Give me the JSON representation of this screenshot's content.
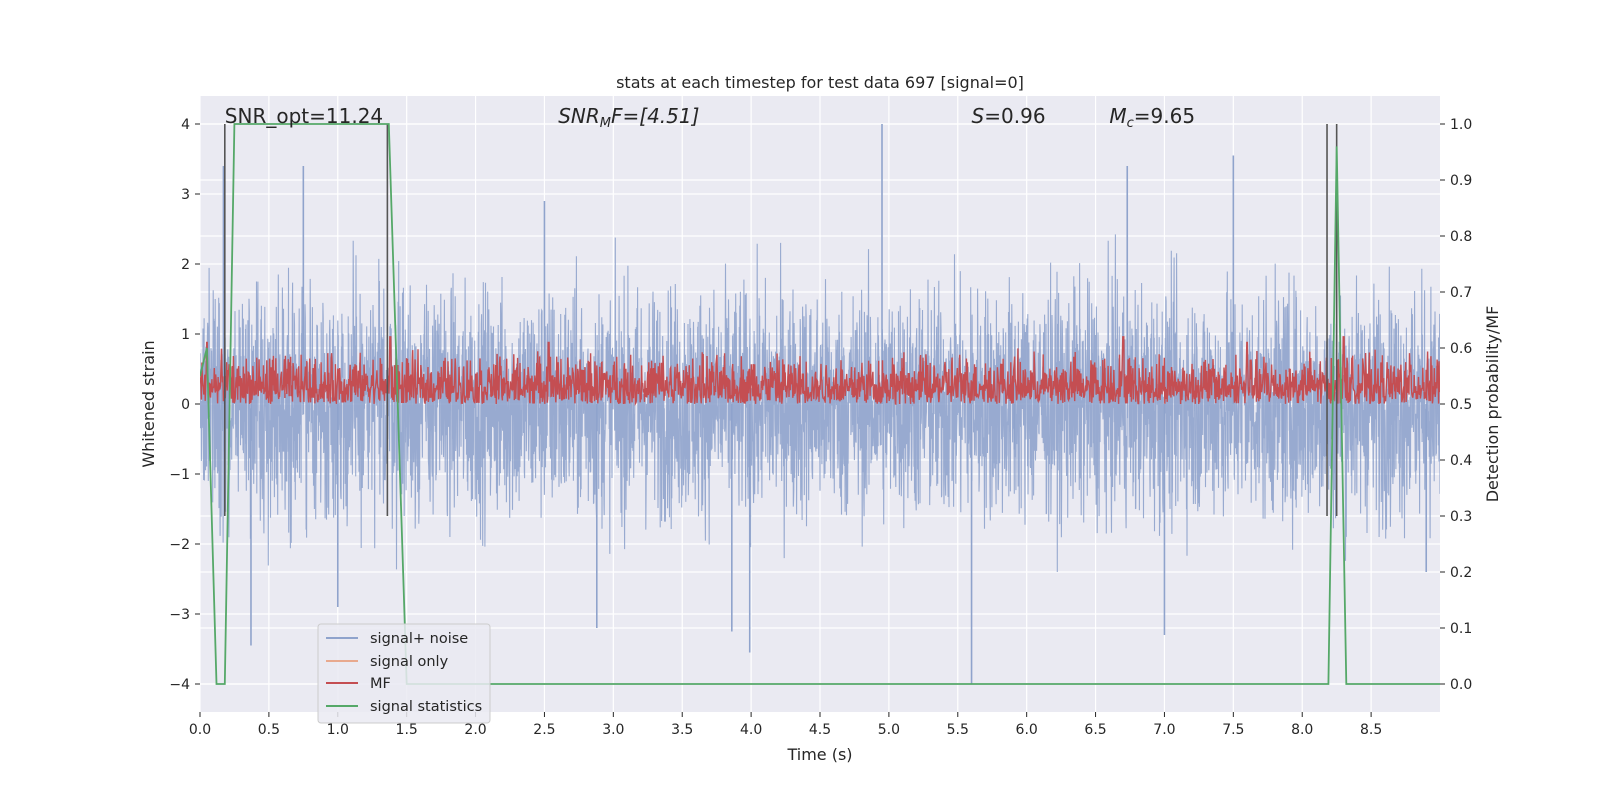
{
  "chart_data": {
    "type": "line",
    "title": "stats at each timestep for test data 697 [signal=0]",
    "xlabel": "Time (s)",
    "ylabel": "Whitened strain",
    "ylabel_right": "Detection probability/MF",
    "xlim": [
      0,
      9.0
    ],
    "ylim": [
      -4.4,
      4.4
    ],
    "ylim_right": [
      -0.05,
      1.05
    ],
    "x_ticks": [
      0.0,
      0.5,
      1.0,
      1.5,
      2.0,
      2.5,
      3.0,
      3.5,
      4.0,
      4.5,
      5.0,
      5.5,
      6.0,
      6.5,
      7.0,
      7.5,
      8.0,
      8.5
    ],
    "x_tick_labels": [
      "0.0",
      "0.5",
      "1.0",
      "1.5",
      "2.0",
      "2.5",
      "3.0",
      "3.5",
      "4.0",
      "4.5",
      "5.0",
      "5.5",
      "6.0",
      "6.5",
      "7.0",
      "7.5",
      "8.0",
      "8.5"
    ],
    "y_ticks": [
      -4,
      -3,
      -2,
      -1,
      0,
      1,
      2,
      3,
      4
    ],
    "y_tick_labels": [
      "−4",
      "−3",
      "−2",
      "−1",
      "0",
      "1",
      "2",
      "3",
      "4"
    ],
    "y_ticks_right": [
      0.0,
      0.1,
      0.2,
      0.3,
      0.4,
      0.5,
      0.6,
      0.7,
      0.8,
      0.9,
      1.0
    ],
    "y_tick_labels_right": [
      "0.0",
      "0.1",
      "0.2",
      "0.3",
      "0.4",
      "0.5",
      "0.6",
      "0.7",
      "0.8",
      "0.9",
      "1.0"
    ],
    "grid": true,
    "background": "#eaeaf2",
    "legend_position": "lower-left",
    "annotations": {
      "snr_opt": {
        "label": "SNR_opt=11.24",
        "x": 0.18
      },
      "snr_mf": {
        "label_prefix": "SNR",
        "label_sub": "M",
        "label_suffix": "F=[4.51]",
        "x": 2.6
      },
      "s_stat": {
        "label_var": "S",
        "label_value": "=0.96",
        "x": 5.6
      },
      "mc_stat": {
        "label_var": "M",
        "label_sub": "c",
        "label_value": "=9.65",
        "x": 6.6
      }
    },
    "series": [
      {
        "name": "signal+ noise",
        "color": "#8fa3cc",
        "axis": "left",
        "description_of_values": "dense white-noise trace, mostly within about -2 to 2.5, extremes near 4 (t≈4.95) and -4 (t≈5.6)",
        "amplitude_envelope": 1.5,
        "outliers": [
          [
            0.17,
            3.4
          ],
          [
            0.37,
            -3.45
          ],
          [
            0.75,
            3.4
          ],
          [
            1.0,
            -2.9
          ],
          [
            2.5,
            2.9
          ],
          [
            2.88,
            -3.2
          ],
          [
            3.86,
            -3.25
          ],
          [
            3.99,
            -3.55
          ],
          [
            4.95,
            4.0
          ],
          [
            5.6,
            -4.0
          ],
          [
            5.91,
            -0.65
          ],
          [
            6.73,
            3.4
          ],
          [
            7.0,
            -3.3
          ],
          [
            7.5,
            3.55
          ],
          [
            7.86,
            -1.2
          ],
          [
            8.9,
            -2.4
          ]
        ]
      },
      {
        "name": "signal only",
        "color": "#e8a98e",
        "axis": "left",
        "values_note": "not visible (zero signal)"
      },
      {
        "name": "MF",
        "color": "#c44e52",
        "axis": "right",
        "baseline_range": [
          0.5,
          0.6
        ],
        "peaks": [
          [
            0.05,
            0.61
          ],
          [
            1.38,
            0.62
          ],
          [
            2.53,
            0.61
          ],
          [
            6.7,
            0.62
          ],
          [
            7.6,
            0.61
          ],
          [
            8.3,
            0.62
          ]
        ]
      },
      {
        "name": "signal statistics",
        "color": "#55a868",
        "axis": "right",
        "x": [
          0.0,
          0.05,
          0.12,
          0.18,
          0.25,
          0.3,
          0.5,
          1.0,
          1.37,
          1.5,
          2.0,
          4.0,
          6.0,
          8.19,
          8.25,
          8.32,
          8.4,
          8.5,
          9.0
        ],
        "y": [
          0.55,
          0.6,
          0.0,
          0.0,
          1.0,
          1.0,
          1.0,
          1.0,
          1.0,
          0.0,
          0.0,
          0.0,
          0.0,
          0.0,
          0.96,
          0.0,
          0.0,
          0.0,
          0.0
        ]
      }
    ],
    "vertical_markers": {
      "color": "#555555",
      "x": [
        0.18,
        1.36,
        8.18,
        8.25
      ],
      "y_right": [
        0.3,
        1.0
      ]
    }
  }
}
